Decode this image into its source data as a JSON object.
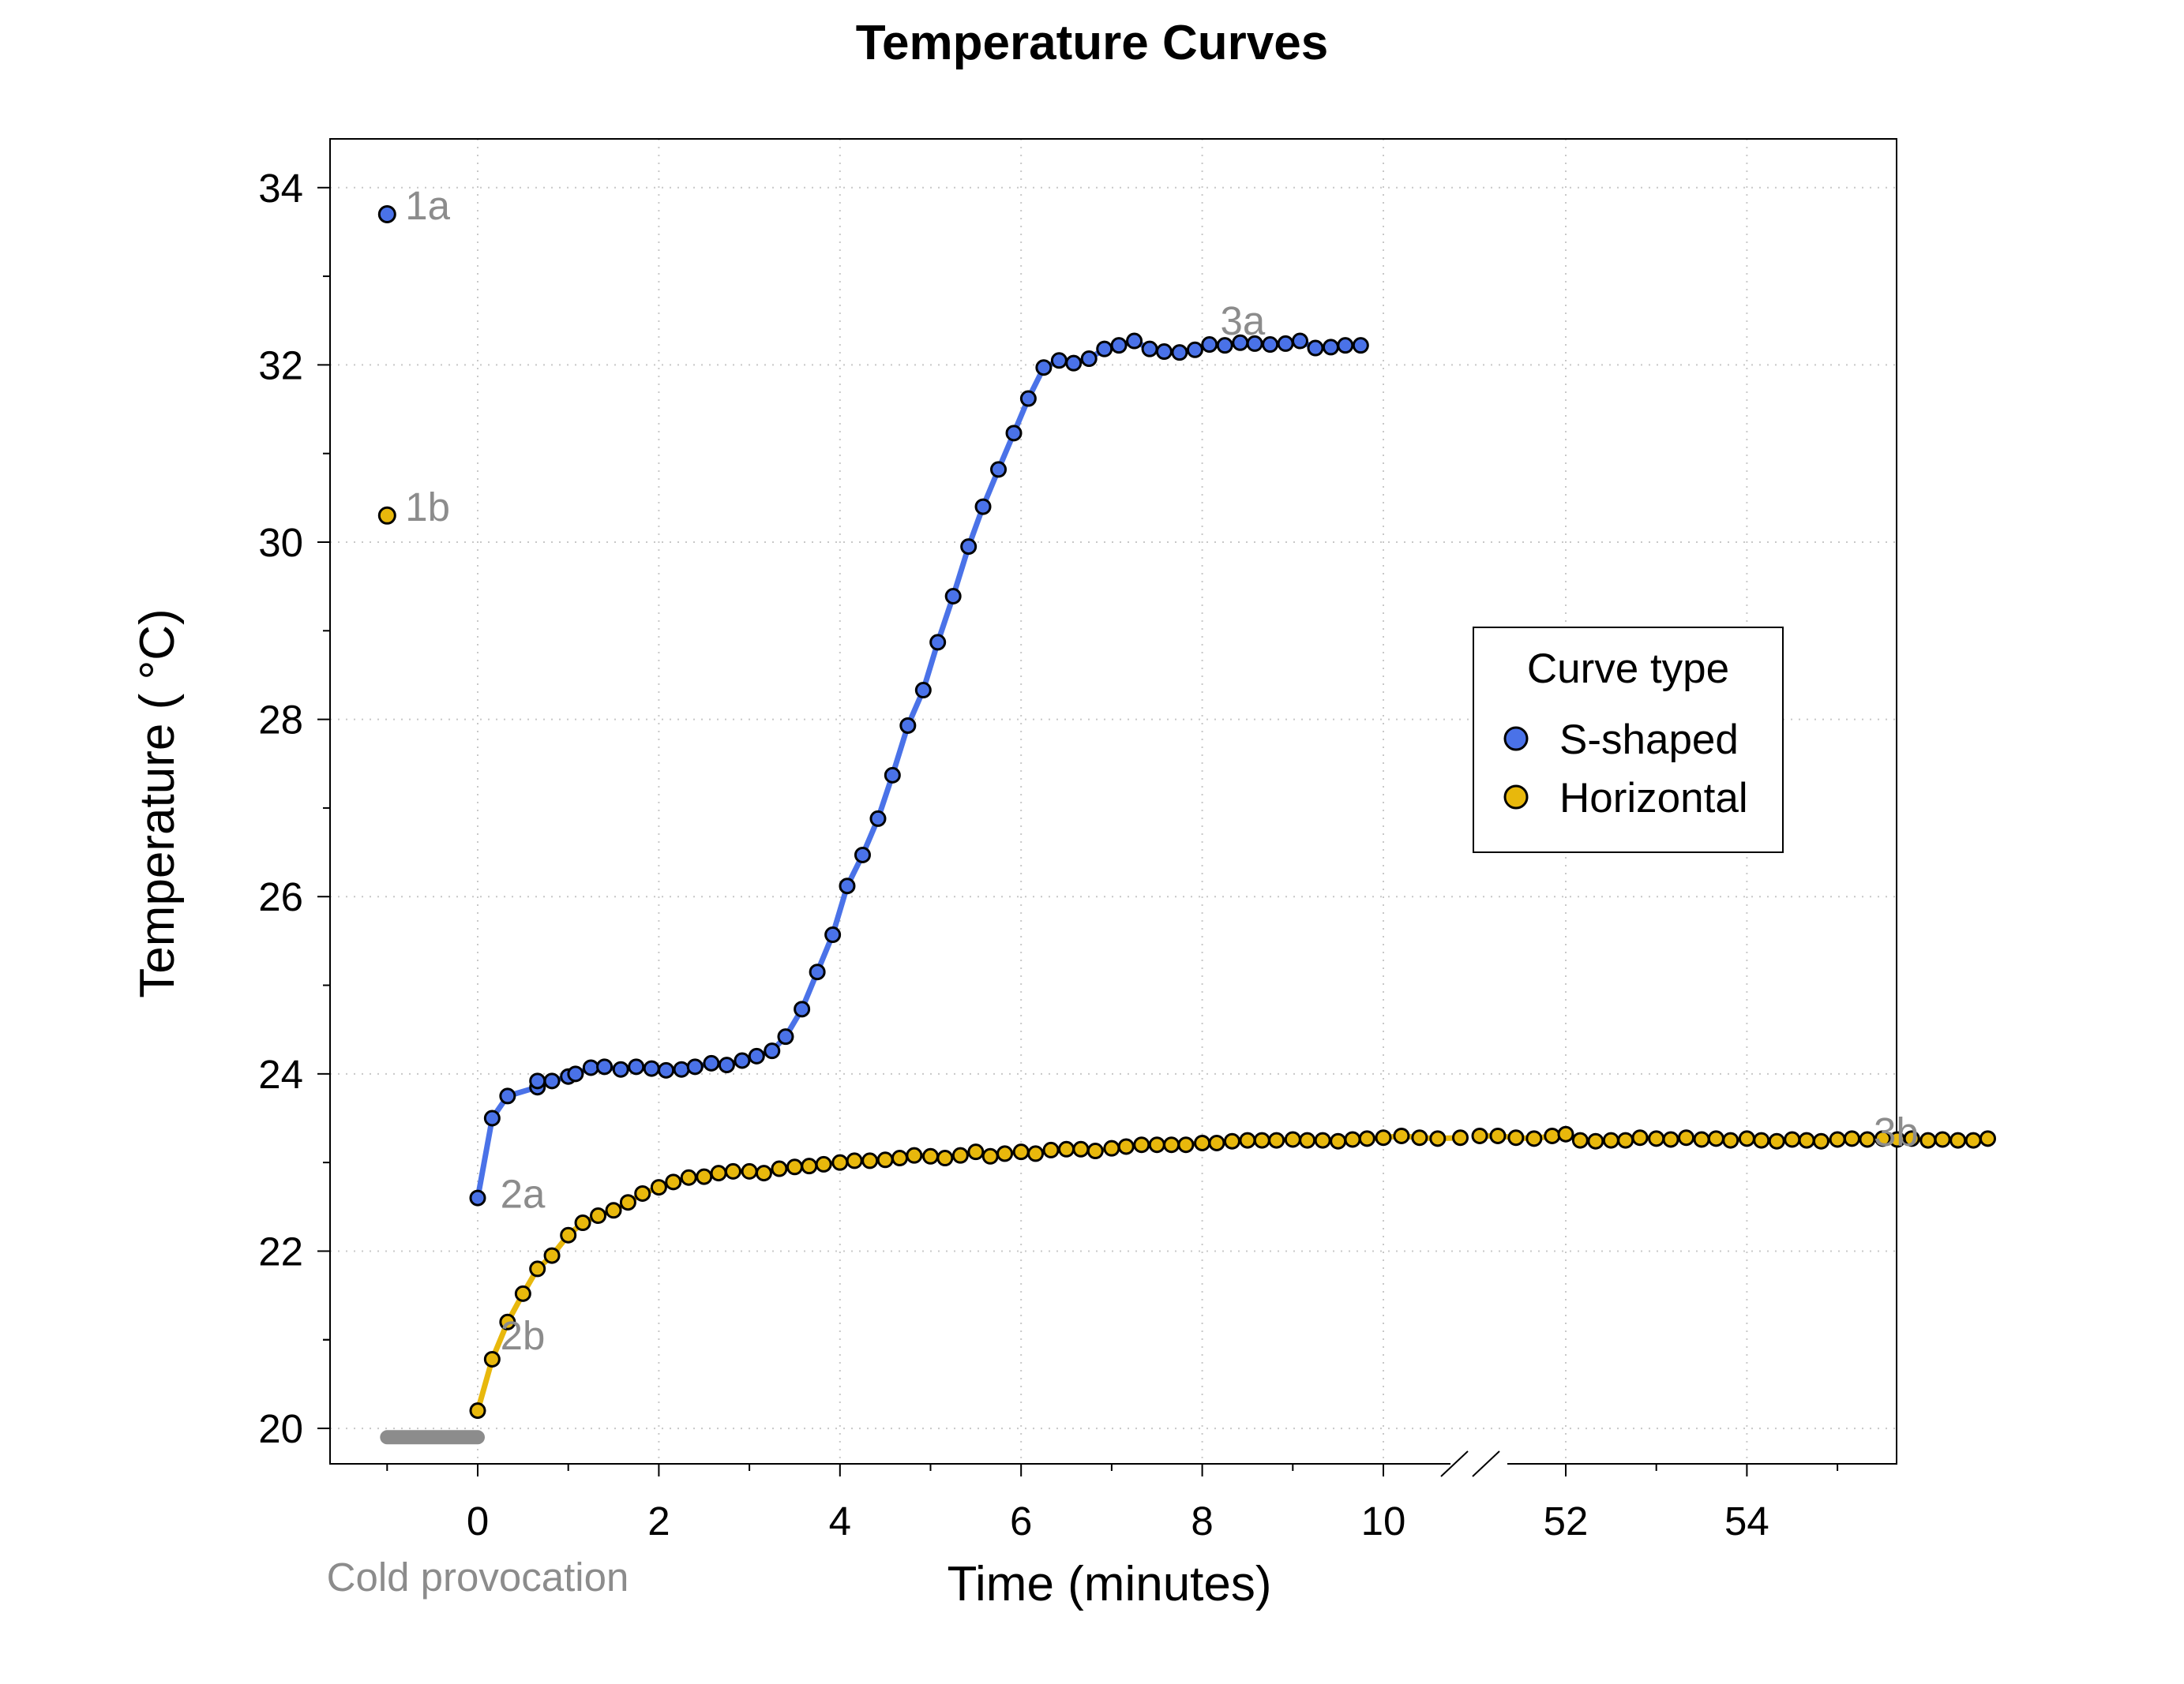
{
  "chart_data": {
    "type": "line",
    "title": "Temperature Curves",
    "xlabel": "Time (minutes)",
    "ylabel": "Temperature ( °C)",
    "ylim": [
      19.6,
      34.55
    ],
    "y_ticks": [
      20,
      22,
      24,
      26,
      28,
      30,
      32,
      34
    ],
    "x_ticks": [
      {
        "value": 0,
        "label": "0"
      },
      {
        "value": 2,
        "label": "2"
      },
      {
        "value": 4,
        "label": "4"
      },
      {
        "value": 6,
        "label": "6"
      },
      {
        "value": 8,
        "label": "8"
      },
      {
        "value": 10,
        "label": "10"
      },
      {
        "value": 52,
        "label": "52"
      },
      {
        "value": 54,
        "label": "54"
      }
    ],
    "x_axis_break": {
      "from": 10,
      "to": 52
    },
    "grid": true,
    "legend": {
      "title": "Curve type",
      "position": "right"
    },
    "cold_provocation": {
      "label": "Cold provocation",
      "x_start": -1,
      "x_end": 0,
      "y": 19.9,
      "color": "#8c8c8c"
    },
    "annotations": [
      {
        "text": "1a",
        "x": -0.8,
        "y": 33.8
      },
      {
        "text": "1b",
        "x": -0.8,
        "y": 30.4
      },
      {
        "text": "2a",
        "x": 0.25,
        "y": 22.65
      },
      {
        "text": "2b",
        "x": 0.25,
        "y": 21.05
      },
      {
        "text": "3a",
        "x": 8.2,
        "y": 32.5
      },
      {
        "text": "3b",
        "x": 55.4,
        "y": 23.35
      }
    ],
    "series": [
      {
        "name": "S-shaped",
        "color": "#4a72e8",
        "line_color": "#4a72e8",
        "baseline_point": {
          "x": -1,
          "y": 33.7
        },
        "x": [
          0,
          0.16,
          0.33,
          0.66,
          0.66,
          0.82,
          1.0,
          1.08,
          1.25,
          1.4,
          1.58,
          1.75,
          1.92,
          2.08,
          2.25,
          2.4,
          2.58,
          2.75,
          2.92,
          3.08,
          3.25,
          3.4,
          3.58,
          3.75,
          3.92,
          4.08,
          4.25,
          4.42,
          4.58,
          4.75,
          4.92,
          5.08,
          5.25,
          5.42,
          5.58,
          5.75,
          5.92,
          6.08,
          6.25,
          6.42,
          6.58,
          6.75,
          6.92,
          7.08,
          7.25,
          7.42,
          7.58,
          7.75,
          7.92,
          8.08,
          8.25,
          8.42,
          8.58,
          8.75,
          8.92,
          9.08,
          9.25,
          9.42,
          9.58,
          9.75
        ],
        "y": [
          22.6,
          23.5,
          23.75,
          23.85,
          23.92,
          23.92,
          23.97,
          24.0,
          24.07,
          24.08,
          24.05,
          24.08,
          24.06,
          24.04,
          24.05,
          24.08,
          24.12,
          24.1,
          24.15,
          24.2,
          24.26,
          24.42,
          24.73,
          25.15,
          25.57,
          26.12,
          26.47,
          26.88,
          27.37,
          27.93,
          28.33,
          28.87,
          29.39,
          29.95,
          30.4,
          30.82,
          31.23,
          31.62,
          31.97,
          32.05,
          32.02,
          32.07,
          32.18,
          32.22,
          32.27,
          32.18,
          32.15,
          32.14,
          32.17,
          32.23,
          32.22,
          32.25,
          32.24,
          32.23,
          32.24,
          32.27,
          32.19,
          32.2,
          32.22,
          32.22
        ]
      },
      {
        "name": "Horizontal",
        "color": "#e8b80c",
        "line_color": "#e8b80c",
        "baseline_point": {
          "x": -1,
          "y": 30.3
        },
        "x": [
          0,
          0.16,
          0.33,
          0.5,
          0.66,
          0.82,
          1.0,
          1.16,
          1.33,
          1.5,
          1.66,
          1.82,
          2.0,
          2.16,
          2.33,
          2.5,
          2.66,
          2.82,
          3.0,
          3.16,
          3.33,
          3.5,
          3.66,
          3.82,
          4.0,
          4.16,
          4.33,
          4.5,
          4.66,
          4.82,
          5.0,
          5.16,
          5.33,
          5.5,
          5.66,
          5.82,
          6.0,
          6.16,
          6.33,
          6.5,
          6.66,
          6.82,
          7.0,
          7.16,
          7.33,
          7.5,
          7.66,
          7.82,
          8.0,
          8.16,
          8.33,
          8.5,
          8.66,
          8.82,
          9.0,
          9.16,
          9.33,
          9.5,
          9.66,
          9.82,
          10.0,
          10.2,
          10.4,
          10.6,
          10.85,
          51.05,
          51.25,
          51.45,
          51.65,
          51.85,
          52.0,
          52.16,
          52.33,
          52.5,
          52.66,
          52.82,
          53.0,
          53.16,
          53.33,
          53.5,
          53.66,
          53.82,
          54.0,
          54.16,
          54.33,
          54.5,
          54.66,
          54.82,
          55.0,
          55.16,
          55.33,
          55.5,
          55.66,
          55.82,
          56.0,
          56.16,
          56.33,
          56.5,
          56.66
        ],
        "y": [
          20.2,
          20.78,
          21.2,
          21.52,
          21.8,
          21.95,
          22.18,
          22.32,
          22.4,
          22.46,
          22.55,
          22.65,
          22.72,
          22.78,
          22.83,
          22.84,
          22.88,
          22.9,
          22.9,
          22.88,
          22.93,
          22.95,
          22.96,
          22.98,
          23.0,
          23.02,
          23.02,
          23.03,
          23.05,
          23.08,
          23.07,
          23.05,
          23.08,
          23.12,
          23.07,
          23.1,
          23.12,
          23.1,
          23.14,
          23.15,
          23.15,
          23.13,
          23.16,
          23.18,
          23.2,
          23.2,
          23.2,
          23.2,
          23.22,
          23.22,
          23.24,
          23.25,
          23.25,
          23.25,
          23.26,
          23.25,
          23.25,
          23.24,
          23.26,
          23.27,
          23.28,
          23.3,
          23.28,
          23.27,
          23.28,
          23.3,
          23.3,
          23.28,
          23.27,
          23.3,
          23.32,
          23.25,
          23.24,
          23.25,
          23.25,
          23.28,
          23.27,
          23.26,
          23.28,
          23.26,
          23.27,
          23.25,
          23.27,
          23.25,
          23.24,
          23.26,
          23.25,
          23.24,
          23.26,
          23.27,
          23.26,
          23.27,
          23.26,
          23.27,
          23.25,
          23.26,
          23.25,
          23.25,
          23.27
        ]
      }
    ]
  }
}
